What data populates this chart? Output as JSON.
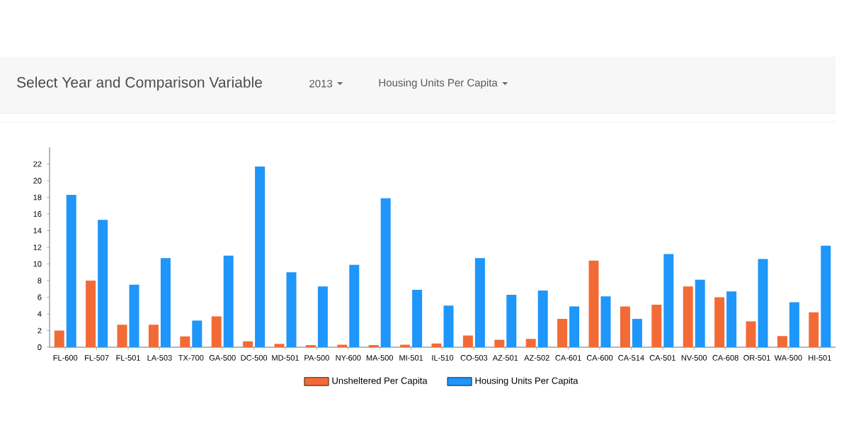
{
  "chart_data": {
    "type": "bar",
    "title": "Select Year and Comparison Variable",
    "annotations": [
      "2013",
      "Housing Units Per Capita"
    ],
    "categories": [
      "FL-600",
      "FL-507",
      "FL-501",
      "LA-503",
      "TX-700",
      "GA-500",
      "DC-500",
      "MD-501",
      "PA-500",
      "NY-600",
      "MA-500",
      "MI-501",
      "IL-510",
      "CO-503",
      "AZ-501",
      "AZ-502",
      "CA-601",
      "CA-600",
      "CA-514",
      "CA-501",
      "NV-500",
      "CA-608",
      "OR-501",
      "WA-500",
      "HI-501"
    ],
    "series": [
      {
        "name": "Unsheltered Per Capita",
        "color": "#f26b36",
        "values": [
          2.0,
          8.0,
          2.7,
          2.7,
          1.3,
          3.7,
          0.7,
          0.4,
          0.25,
          0.3,
          0.25,
          0.3,
          0.45,
          1.4,
          0.9,
          1.0,
          3.4,
          10.4,
          4.9,
          5.1,
          7.3,
          6.0,
          3.1,
          1.35,
          4.2
        ]
      },
      {
        "name": "Housing Units Per Capita",
        "color": "#1e96fa",
        "values": [
          18.3,
          15.3,
          7.5,
          10.7,
          3.2,
          11.0,
          21.7,
          9.0,
          7.3,
          9.9,
          17.9,
          6.9,
          5.0,
          10.7,
          6.3,
          6.8,
          4.9,
          6.1,
          3.4,
          11.2,
          8.1,
          6.7,
          10.6,
          5.4,
          12.2
        ]
      }
    ],
    "ylim": [
      0,
      24
    ],
    "yticks": [
      0,
      2,
      4,
      6,
      8,
      10,
      12,
      14,
      16,
      18,
      20,
      22
    ],
    "legend": "bottom"
  }
}
